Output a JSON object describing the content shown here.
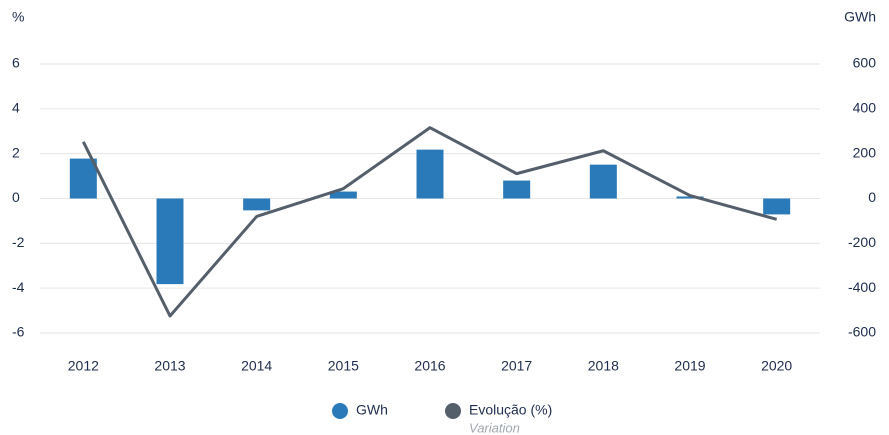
{
  "chart_data": {
    "type": "bar",
    "y_axis_label": "%",
    "y2_axis_label": "GWh",
    "categories": [
      "2012",
      "2013",
      "2014",
      "2015",
      "2016",
      "2017",
      "2018",
      "2019",
      "2020"
    ],
    "series": [
      {
        "name": "GWh",
        "type": "bar",
        "axis": "y2",
        "color": "#2a7ab9",
        "values": [
          178,
          -382,
          -53,
          31,
          218,
          80,
          151,
          9,
          -71
        ]
      },
      {
        "name": "Evolução (%)",
        "type": "line",
        "axis": "y",
        "color": "#555f6b",
        "values": [
          2.53,
          -5.24,
          -0.8,
          0.44,
          3.16,
          1.11,
          2.13,
          0.13,
          -0.93
        ],
        "legend_note": "Variation"
      }
    ],
    "ylim": [
      -6,
      6
    ],
    "yticks": [
      -6,
      -4,
      -2,
      0,
      2,
      4,
      6
    ],
    "y2lim": [
      -600,
      600
    ],
    "y2ticks": [
      -600,
      -400,
      -200,
      0,
      200,
      400,
      600
    ],
    "grid": true
  }
}
